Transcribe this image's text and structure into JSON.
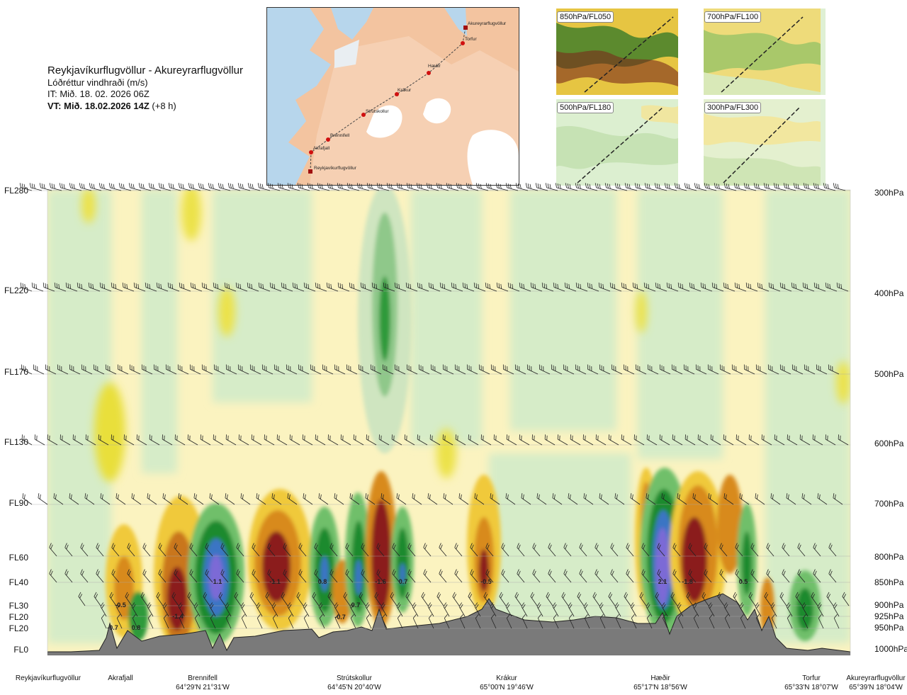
{
  "header": {
    "route": "Reykjavíkurflugvöllur - Akureyrarflugvöllur",
    "parameter": "Lóðréttur vindhraði (m/s)",
    "it_line": "IT: Mið. 18. 02. 2026 06Z",
    "vt_bold": "VT: Mið. 18.02.2026 14Z",
    "vt_suffix": " (+8 h)"
  },
  "map": {
    "points": [
      {
        "name": "Akureyrarflugvöllur"
      },
      {
        "name": "Torfur"
      },
      {
        "name": "Hæðir"
      },
      {
        "name": "Krákur"
      },
      {
        "name": "Strútskollur"
      },
      {
        "name": "Brennifell"
      },
      {
        "name": "Akrafjall"
      },
      {
        "name": "Reykjavíkurflugvöllur"
      }
    ]
  },
  "mini_maps": [
    {
      "label": "850hPa/FL050"
    },
    {
      "label": "700hPa/FL100"
    },
    {
      "label": "500hPa/FL180"
    },
    {
      "label": "300hPa/FL300"
    }
  ],
  "levels_left": [
    "FL280",
    "FL220",
    "FL170",
    "FL130",
    "FL90",
    "FL60",
    "FL40",
    "FL30",
    "FL20",
    "FL20",
    "FL0"
  ],
  "levels_right": [
    "300hPa",
    "400hPa",
    "500hPa",
    "600hPa",
    "700hPa",
    "800hPa",
    "850hPa",
    "900hPa",
    "925hPa",
    "950hPa",
    "1000hPa"
  ],
  "waypoints": [
    {
      "name": "Reykjavíkurflugvöllur",
      "coord": ""
    },
    {
      "name": "Akrafjall",
      "coord": ""
    },
    {
      "name": "Brennifell",
      "coord": "64°29'N 21°31'W"
    },
    {
      "name": "Strútskollur",
      "coord": "64°45'N 20°40'W"
    },
    {
      "name": "Krákur",
      "coord": "65°00'N 19°46'W"
    },
    {
      "name": "Hæðir",
      "coord": "65°17'N 18°56'W"
    },
    {
      "name": "Torfur",
      "coord": "65°33'N 18°07'W"
    },
    {
      "name": "Akureyrarflugvöllur",
      "coord": "65°39'N 18°04'W"
    }
  ],
  "colors": {
    "strong_up": "#6a5acd",
    "up": "#1f8a2e",
    "weak_up": "#cfe9c8",
    "weak_down": "#fbf3b8",
    "down": "#f1d23a",
    "strong_down": "#8b1a1a",
    "terrain": "#7a7a7a"
  },
  "chart_data": {
    "type": "heatmap",
    "title": "Lóðréttur vindhraði (m/s)",
    "y_levels_fl": [
      "FL280",
      "FL220",
      "FL170",
      "FL130",
      "FL90",
      "FL60",
      "FL40",
      "FL30",
      "FL20",
      "FL20",
      "FL0"
    ],
    "y_levels_hpa": [
      "300hPa",
      "400hPa",
      "500hPa",
      "600hPa",
      "700hPa",
      "800hPa",
      "850hPa",
      "900hPa",
      "925hPa",
      "950hPa",
      "1000hPa"
    ],
    "x_waypoints": [
      "Reykjavíkurflugvöllur",
      "Akrafjall",
      "Brennifell",
      "Strútskollur",
      "Krákur",
      "Hæðir",
      "Torfur",
      "Akureyrarflugvöllur"
    ],
    "labeled_values": [
      {
        "label": "-0.7",
        "value": -0.7
      },
      {
        "label": "-0.5",
        "value": -0.5
      },
      {
        "label": "0.8",
        "value": 0.8
      },
      {
        "label": "-1.4",
        "value": -1.4
      },
      {
        "label": "1.1",
        "value": 1.1
      },
      {
        "label": "-1.1",
        "value": -1.1
      },
      {
        "label": "0.8",
        "value": 0.8
      },
      {
        "label": "-0.7",
        "value": -0.7
      },
      {
        "label": "0.7",
        "value": 0.7
      },
      {
        "label": "-1.6",
        "value": -1.6
      },
      {
        "label": "0.7",
        "value": 0.7
      },
      {
        "label": "-0.5",
        "value": -0.5
      },
      {
        "label": "2.1",
        "value": 2.1
      },
      {
        "label": "-1.8",
        "value": -1.8
      },
      {
        "label": "0.5",
        "value": 0.5
      }
    ]
  }
}
